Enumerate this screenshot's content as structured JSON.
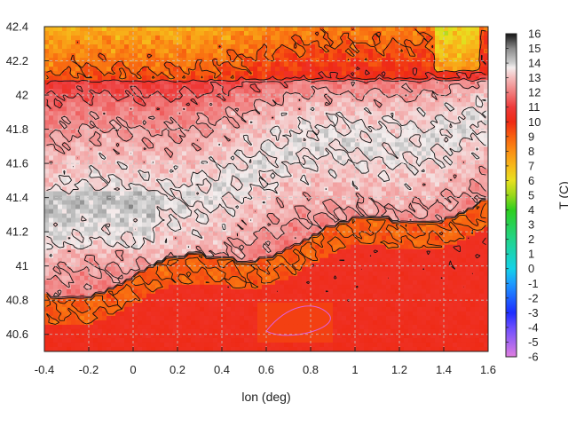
{
  "chart_data": {
    "type": "heatmap",
    "title": "",
    "xlabel": "lon (deg)",
    "ylabel": "",
    "colorbar_label": "T (C)",
    "xlim": [
      -0.4,
      1.6
    ],
    "ylim": [
      40.5,
      42.4
    ],
    "x_ticks": [
      -0.4,
      -0.2,
      0,
      0.2,
      0.4,
      0.6,
      0.8,
      1,
      1.2,
      1.4,
      1.6
    ],
    "y_ticks": [
      40.6,
      40.8,
      41,
      41.2,
      41.4,
      41.6,
      41.8,
      42,
      42.2,
      42.4
    ],
    "x_tick_labels": [
      "-0.4",
      "-0.2",
      "0",
      "0.2",
      "0.4",
      "0.6",
      "0.8",
      "1",
      "1.2",
      "1.4",
      "1.6"
    ],
    "y_tick_labels": [
      "40.6",
      "40.8",
      "41",
      "41.2",
      "41.4",
      "41.6",
      "41.8",
      "42",
      "42.2",
      "42.4"
    ],
    "color_range": [
      -6,
      16
    ],
    "colorbar_ticks": [
      -6,
      -5,
      -4,
      -3,
      -2,
      -1,
      0,
      1,
      2,
      3,
      4,
      5,
      6,
      7,
      8,
      9,
      10,
      11,
      12,
      13,
      14,
      15,
      16
    ],
    "colorbar_tick_labels": [
      "-6",
      "-5",
      "-4",
      "-3",
      "-2",
      "-1",
      "0",
      "1",
      "2",
      "3",
      "4",
      "5",
      "6",
      "7",
      "8",
      "9",
      "10",
      "11",
      "12",
      "13",
      "14",
      "15",
      "16"
    ],
    "grid": true,
    "contours": true,
    "color_stops": [
      {
        "value": -6,
        "color": "#e07ee0"
      },
      {
        "value": -4,
        "color": "#6a4dff"
      },
      {
        "value": -3,
        "color": "#1e2dff"
      },
      {
        "value": -1,
        "color": "#1e9bff"
      },
      {
        "value": 0,
        "color": "#14d2e8"
      },
      {
        "value": 2,
        "color": "#22d48a"
      },
      {
        "value": 4,
        "color": "#2ecf1e"
      },
      {
        "value": 5,
        "color": "#9ad81a"
      },
      {
        "value": 6,
        "color": "#e8e020"
      },
      {
        "value": 7,
        "color": "#f7b91a"
      },
      {
        "value": 8,
        "color": "#fa8f14"
      },
      {
        "value": 9,
        "color": "#f86010"
      },
      {
        "value": 10,
        "color": "#ef2a14"
      },
      {
        "value": 11,
        "color": "#ee3a3a"
      },
      {
        "value": 12,
        "color": "#f07c7c"
      },
      {
        "value": 13,
        "color": "#f4bcbc"
      },
      {
        "value": 13.7,
        "color": "#f4eeee"
      },
      {
        "value": 14,
        "color": "#cfcfcf"
      },
      {
        "value": 15,
        "color": "#8a8a8a"
      },
      {
        "value": 16,
        "color": "#141414"
      }
    ]
  }
}
